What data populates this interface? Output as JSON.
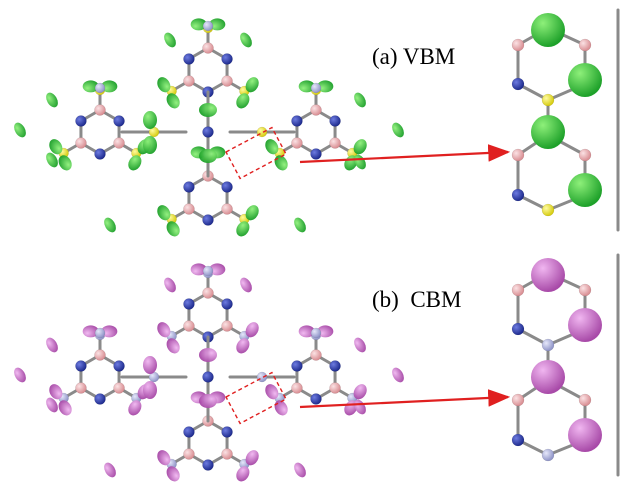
{
  "labels": {
    "vbm": "(a) VBM",
    "cbm": "(b)  CBM"
  },
  "colors": {
    "background": "#ffffff",
    "bond": "#9a9a9a",
    "atom_pink": "#e7a8ac",
    "atom_blue": "#2f3fb0",
    "atom_yellow": "#f3ea2a",
    "atom_lavender": "#b9bde6",
    "lobe_vbm": "#2fc33a",
    "lobe_cbm": "#c86dc8",
    "arrow": "#e02020",
    "highlight_box": "#e02020"
  },
  "panels": [
    {
      "id": "vbm",
      "label_key": "vbm",
      "lobe_color_key": "lobe_vbm",
      "bridge_color_key": "atom_yellow"
    },
    {
      "id": "cbm",
      "label_key": "cbm",
      "lobe_color_key": "lobe_cbm",
      "bridge_color_key": "atom_lavender"
    }
  ]
}
